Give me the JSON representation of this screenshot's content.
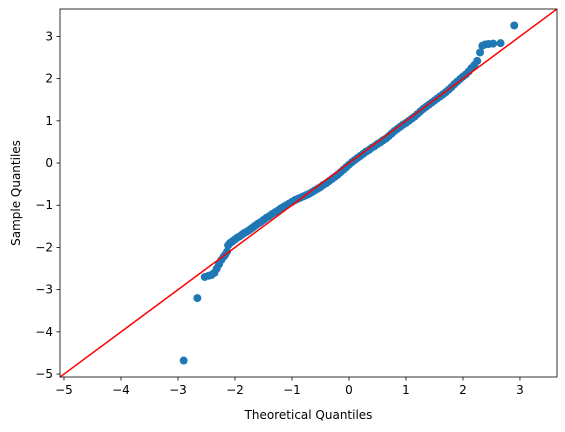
{
  "chart_data": {
    "type": "scatter",
    "title": "",
    "xlabel": "Theoretical Quantiles",
    "ylabel": "Sample Quantiles",
    "xlim": [
      -5.07,
      3.65
    ],
    "ylim": [
      -5.07,
      3.65
    ],
    "xticks": [
      -5,
      -4,
      -3,
      -2,
      -1,
      0,
      1,
      2,
      3
    ],
    "yticks": [
      -5,
      -4,
      -3,
      -2,
      -1,
      0,
      1,
      2,
      3
    ],
    "grid": false,
    "reference_line": {
      "x": [
        -5.07,
        3.65
      ],
      "y": [
        -5.07,
        3.65
      ],
      "color": "#ff0000"
    },
    "series": [
      {
        "color": "#1f77b4",
        "points": [
          [
            -2.9,
            -4.68
          ],
          [
            -2.66,
            -3.2
          ],
          [
            -2.53,
            -2.7
          ],
          [
            -2.46,
            -2.67
          ],
          [
            -2.41,
            -2.65
          ],
          [
            -2.36,
            -2.6
          ],
          [
            -2.32,
            -2.5
          ],
          [
            -2.28,
            -2.4
          ],
          [
            -2.24,
            -2.3
          ],
          [
            -2.2,
            -2.22
          ],
          [
            -2.17,
            -2.17
          ],
          [
            -2.14,
            -2.1
          ],
          [
            -2.12,
            -1.95
          ],
          [
            -2.09,
            -1.9
          ],
          [
            -2.06,
            -1.87
          ],
          [
            -2.03,
            -1.84
          ],
          [
            -2.0,
            -1.81
          ],
          [
            -1.96,
            -1.77
          ],
          [
            -1.92,
            -1.74
          ],
          [
            -1.88,
            -1.7
          ],
          [
            -1.84,
            -1.66
          ],
          [
            -1.8,
            -1.63
          ],
          [
            -1.76,
            -1.6
          ],
          [
            -1.72,
            -1.56
          ],
          [
            -1.68,
            -1.52
          ],
          [
            -1.64,
            -1.48
          ],
          [
            -1.6,
            -1.44
          ],
          [
            -1.55,
            -1.4
          ],
          [
            -1.5,
            -1.35
          ],
          [
            -1.45,
            -1.3
          ],
          [
            -1.4,
            -1.26
          ],
          [
            -1.35,
            -1.21
          ],
          [
            -1.3,
            -1.17
          ],
          [
            -1.25,
            -1.13
          ],
          [
            -1.2,
            -1.08
          ],
          [
            -1.15,
            -1.04
          ],
          [
            -1.1,
            -1.0
          ],
          [
            -1.05,
            -0.96
          ],
          [
            -1.0,
            -0.92
          ],
          [
            -0.95,
            -0.88
          ],
          [
            -0.9,
            -0.85
          ],
          [
            -0.85,
            -0.82
          ],
          [
            -0.8,
            -0.79
          ],
          [
            -0.75,
            -0.76
          ],
          [
            -0.7,
            -0.73
          ],
          [
            -0.65,
            -0.69
          ],
          [
            -0.6,
            -0.65
          ],
          [
            -0.55,
            -0.61
          ],
          [
            -0.5,
            -0.57
          ],
          [
            -0.45,
            -0.52
          ],
          [
            -0.4,
            -0.48
          ],
          [
            -0.35,
            -0.43
          ],
          [
            -0.3,
            -0.38
          ],
          [
            -0.25,
            -0.33
          ],
          [
            -0.2,
            -0.28
          ],
          [
            -0.15,
            -0.22
          ],
          [
            -0.1,
            -0.16
          ],
          [
            -0.05,
            -0.1
          ],
          [
            0.0,
            -0.04
          ],
          [
            0.05,
            0.02
          ],
          [
            0.1,
            0.07
          ],
          [
            0.15,
            0.12
          ],
          [
            0.2,
            0.17
          ],
          [
            0.25,
            0.22
          ],
          [
            0.3,
            0.27
          ],
          [
            0.35,
            0.31
          ],
          [
            0.4,
            0.36
          ],
          [
            0.45,
            0.4
          ],
          [
            0.5,
            0.45
          ],
          [
            0.55,
            0.49
          ],
          [
            0.6,
            0.54
          ],
          [
            0.65,
            0.58
          ],
          [
            0.7,
            0.64
          ],
          [
            0.75,
            0.7
          ],
          [
            0.8,
            0.76
          ],
          [
            0.85,
            0.81
          ],
          [
            0.9,
            0.86
          ],
          [
            0.95,
            0.91
          ],
          [
            1.0,
            0.95
          ],
          [
            1.05,
            1.0
          ],
          [
            1.1,
            1.05
          ],
          [
            1.15,
            1.1
          ],
          [
            1.2,
            1.16
          ],
          [
            1.25,
            1.22
          ],
          [
            1.3,
            1.28
          ],
          [
            1.35,
            1.33
          ],
          [
            1.4,
            1.38
          ],
          [
            1.45,
            1.43
          ],
          [
            1.5,
            1.48
          ],
          [
            1.55,
            1.53
          ],
          [
            1.6,
            1.58
          ],
          [
            1.65,
            1.63
          ],
          [
            1.7,
            1.68
          ],
          [
            1.75,
            1.74
          ],
          [
            1.8,
            1.8
          ],
          [
            1.85,
            1.87
          ],
          [
            1.9,
            1.93
          ],
          [
            1.95,
            1.99
          ],
          [
            2.0,
            2.05
          ],
          [
            2.05,
            2.1
          ],
          [
            2.1,
            2.17
          ],
          [
            2.15,
            2.25
          ],
          [
            2.2,
            2.32
          ],
          [
            2.25,
            2.42
          ],
          [
            2.3,
            2.62
          ],
          [
            2.34,
            2.78
          ],
          [
            2.39,
            2.81
          ],
          [
            2.45,
            2.82
          ],
          [
            2.53,
            2.83
          ],
          [
            2.66,
            2.84
          ],
          [
            2.9,
            3.26
          ]
        ]
      }
    ]
  }
}
